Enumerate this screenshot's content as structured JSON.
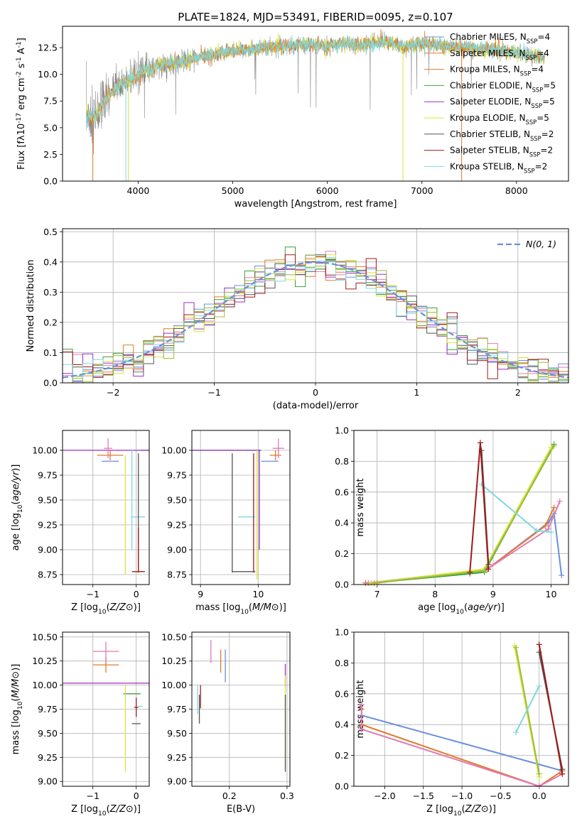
{
  "figure": {
    "title": "PLATE=1824, MJD=53491, FIBERID=0095, z=0.107"
  },
  "colors": {
    "cMILES": "#6a8fdc",
    "sMILES": "#e07b2a",
    "kMILES": "#e07b2a",
    "cELODIE": "#3c9f3c",
    "sELODIE": "#9b2fc0",
    "kELODIE": "#d8e63a",
    "cSTELIB": "#555555",
    "sSTELIB": "#a01a1a",
    "kSTELIB": "#7fd8e0",
    "pink": "#e27ab8",
    "olive": "#9abe3a",
    "gray": "#888888",
    "normal": "#6a8fdc"
  },
  "chart_data": [
    {
      "id": "spectrum",
      "type": "line",
      "xlabel": "wavelength [Angstrom, rest frame]",
      "ylabel": "Flux [f$_\\lambda$10$^{-17}$ erg cm$^{-2}$ s$^{-1}$ A$^{-1}$]",
      "xlim": [
        3200,
        8550
      ],
      "ylim": [
        0,
        14.5
      ],
      "xticks": [
        4000,
        5000,
        6000,
        7000,
        8000
      ],
      "yticks": [
        0.0,
        2.5,
        5.0,
        7.5,
        10.0,
        12.5
      ],
      "legend": [
        {
          "label": "Chabrier MILES, N$_{SSP}$=4",
          "color_key": "cMILES"
        },
        {
          "label": "Salpeter MILES, N$_{SSP}$=4",
          "color_key": "sMILES"
        },
        {
          "label": "Kroupa MILES, N$_{SSP}$=4",
          "color_key": "kMILES"
        },
        {
          "label": "Chabrier ELODIE, N$_{SSP}$=5",
          "color_key": "cELODIE"
        },
        {
          "label": "Salpeter ELODIE, N$_{SSP}$=5",
          "color_key": "sELODIE"
        },
        {
          "label": "Kroupa ELODIE, N$_{SSP}$=5",
          "color_key": "kELODIE"
        },
        {
          "label": "Chabrier STELIB, N$_{SSP}$=2",
          "color_key": "cSTELIB"
        },
        {
          "label": "Salpeter STELIB, N$_{SSP}$=2",
          "color_key": "sSTELIB"
        },
        {
          "label": "Kroupa STELIB, N$_{SSP}$=2",
          "color_key": "kSTELIB"
        }
      ],
      "data_trend": {
        "x": [
          3450,
          3550,
          3650,
          3750,
          3850,
          3950,
          4050,
          4200,
          4400,
          4600,
          4800,
          5000,
          5200,
          5400,
          5600,
          5800,
          6000,
          6200,
          6400,
          6600,
          6800,
          7000,
          7200,
          7400,
          7600,
          7800,
          8000,
          8200,
          8300
        ],
        "y": [
          6.1,
          6.0,
          7.6,
          8.6,
          9.2,
          9.6,
          10.3,
          10.8,
          11.0,
          11.5,
          11.9,
          12.2,
          12.3,
          12.6,
          12.7,
          12.8,
          12.6,
          12.9,
          12.7,
          13.1,
          12.6,
          12.9,
          12.7,
          12.6,
          12.4,
          12.3,
          12.0,
          11.7,
          11.4
        ]
      },
      "dips": [
        {
          "x": 3520,
          "y": 0.0,
          "color_key": "sMILES"
        },
        {
          "x": 3870,
          "y": 0.0,
          "color_key": "kSTELIB"
        },
        {
          "x": 3895,
          "y": 0.0,
          "color_key": "kELODIE"
        },
        {
          "x": 6800,
          "y": 0.0,
          "color_key": "kELODIE"
        },
        {
          "x": 7420,
          "y": 0.0,
          "color_key": "sMILES"
        }
      ]
    },
    {
      "id": "residuals",
      "type": "line",
      "xlabel": "(data-model)/error",
      "ylabel": "Normed distribution",
      "xlim": [
        -2.5,
        2.5
      ],
      "ylim": [
        0,
        0.51
      ],
      "xticks": [
        -2,
        -1,
        0,
        1,
        2
      ],
      "yticks": [
        0.0,
        0.1,
        0.2,
        0.3,
        0.4,
        0.5
      ],
      "legend": [
        {
          "label": "$\\mathcal{N}(0,1)$",
          "color_key": "normal"
        }
      ],
      "bin_width": 0.1,
      "nbins": 50
    },
    {
      "id": "age_vs_Z",
      "type": "scatter",
      "xlabel": "Z [log$_{10}$($Z/Z_\\odot$)]",
      "ylabel": "age  [log$_{10}$($age/yr$)]",
      "xlim": [
        -1.7,
        0.3
      ],
      "ylim": [
        8.65,
        10.2
      ],
      "xticks": [
        -1,
        0
      ],
      "yticks": [
        8.75,
        9.0,
        9.25,
        9.5,
        9.75,
        10.0
      ],
      "points": [
        {
          "x": 0.2,
          "xe": 0.1,
          "y": 10.0,
          "ye": 0.0,
          "color_key": "cELODIE"
        },
        {
          "x": -0.7,
          "xe": 1.0,
          "y": 10.0,
          "ye": 0.0,
          "color_key": "sELODIE"
        },
        {
          "x": -0.6,
          "xe": 0.3,
          "y": 9.95,
          "ye": 0.05,
          "color_key": "sMILES"
        },
        {
          "x": -0.6,
          "xe": 0.2,
          "y": 9.89,
          "ye": 0.0,
          "color_key": "cMILES"
        },
        {
          "x": -0.65,
          "xe": 0.1,
          "y": 10.02,
          "ye": 0.1,
          "color_key": "pink"
        },
        {
          "x": -0.25,
          "xe": 0.0,
          "y": 9.35,
          "ye": 0.6,
          "color_key": "kELODIE"
        },
        {
          "x": -0.1,
          "xe": 0.0,
          "y": 9.5,
          "ye": 0.5,
          "color_key": "kSTELIB"
        },
        {
          "x": 0.05,
          "xe": 0.15,
          "y": 9.33,
          "ye": 0.0,
          "color_key": "kSTELIB"
        },
        {
          "x": 0.05,
          "xe": 0.0,
          "y": 9.37,
          "ye": 0.6,
          "color_key": "cSTELIB"
        },
        {
          "x": 0.05,
          "xe": 0.15,
          "y": 8.78,
          "ye": 0.0,
          "color_key": "sSTELIB"
        },
        {
          "x": 0.05,
          "xe": 0.0,
          "y": 9.0,
          "ye": 0.22,
          "color_key": "sSTELIB"
        }
      ]
    },
    {
      "id": "age_vs_mass",
      "type": "scatter",
      "xlabel": "mass [log$_{10}$($M/M_\\odot$)]",
      "ylabel": "",
      "xlim": [
        8.85,
        10.55
      ],
      "ylim": [
        8.65,
        10.2
      ],
      "xticks": [
        9,
        10
      ],
      "yticks": [
        8.75,
        9.0,
        9.25,
        9.5,
        9.75,
        10.0
      ],
      "points": [
        {
          "x": 9.45,
          "xe": 0.6,
          "y": 10.0,
          "ye": 0.0,
          "color_key": "cELODIE"
        },
        {
          "x": 9.45,
          "xe": 0.6,
          "y": 10.0,
          "ye": 0.0,
          "color_key": "sELODIE"
        },
        {
          "x": 10.3,
          "xe": 0.1,
          "y": 9.95,
          "ye": 0.05,
          "color_key": "sMILES"
        },
        {
          "x": 10.2,
          "xe": 0.15,
          "y": 9.89,
          "ye": 0.0,
          "color_key": "cMILES"
        },
        {
          "x": 10.35,
          "xe": 0.1,
          "y": 10.02,
          "ye": 0.1,
          "color_key": "pink"
        },
        {
          "x": 9.98,
          "xe": 0.0,
          "y": 9.35,
          "ye": 0.65,
          "color_key": "kELODIE"
        },
        {
          "x": 9.8,
          "xe": 0.15,
          "y": 9.33,
          "ye": 0.0,
          "color_key": "kSTELIB"
        },
        {
          "x": 9.75,
          "xe": 0.2,
          "y": 8.78,
          "ye": 0.0,
          "color_key": "cSTELIB"
        },
        {
          "x": 9.55,
          "xe": 0.0,
          "y": 9.37,
          "ye": 0.6,
          "color_key": "cSTELIB"
        },
        {
          "x": 9.92,
          "xe": 0.0,
          "y": 9.37,
          "ye": 0.6,
          "color_key": "sSTELIB"
        },
        {
          "x": 10.02,
          "xe": 0.0,
          "y": 9.5,
          "ye": 0.5,
          "color_key": "sELODIE"
        }
      ]
    },
    {
      "id": "mw_vs_age",
      "type": "line",
      "xlabel": "age  [log$_{10}$($age/yr$)]",
      "ylabel": "mass weight",
      "xlim": [
        6.6,
        10.3
      ],
      "ylim": [
        0,
        1.0
      ],
      "xticks": [
        7,
        8,
        9,
        10
      ],
      "yticks": [
        0.0,
        0.2,
        0.4,
        0.6,
        0.8,
        1.0
      ],
      "series": [
        {
          "color_key": "cMILES",
          "x": [
            6.8,
            7.0,
            8.9,
            9.95,
            10.05,
            10.18
          ],
          "y": [
            0.01,
            0.01,
            0.1,
            0.4,
            0.46,
            0.06
          ]
        },
        {
          "color_key": "sMILES",
          "x": [
            6.8,
            7.0,
            8.9,
            9.9,
            10.05
          ],
          "y": [
            0.01,
            0.01,
            0.1,
            0.38,
            0.5
          ]
        },
        {
          "color_key": "pink",
          "x": [
            6.85,
            8.9,
            9.95,
            10.15
          ],
          "y": [
            0.01,
            0.1,
            0.36,
            0.54
          ]
        },
        {
          "color_key": "cELODIE",
          "x": [
            6.9,
            8.6,
            8.85,
            10.05
          ],
          "y": [
            0.01,
            0.07,
            0.08,
            0.91
          ]
        },
        {
          "color_key": "kELODIE",
          "x": [
            6.9,
            8.85,
            10.0
          ],
          "y": [
            0.01,
            0.1,
            0.89
          ]
        },
        {
          "color_key": "olive",
          "x": [
            6.95,
            8.85,
            10.05
          ],
          "y": [
            0.01,
            0.09,
            0.9
          ]
        },
        {
          "color_key": "kSTELIB",
          "x": [
            8.8,
            9.75,
            10.0
          ],
          "y": [
            0.65,
            0.35,
            0.34
          ]
        },
        {
          "color_key": "cSTELIB",
          "x": [
            8.8,
            8.92
          ],
          "y": [
            0.87,
            0.13
          ]
        },
        {
          "color_key": "sSTELIB",
          "x": [
            8.6,
            8.78,
            8.92
          ],
          "y": [
            0.08,
            0.92,
            0.1
          ]
        }
      ]
    },
    {
      "id": "mass_vs_Z",
      "type": "scatter",
      "xlabel": "Z [log$_{10}$($Z/Z_\\odot$)]",
      "ylabel": "mass [log$_{10}$($M/M_\\odot$)]",
      "xlim": [
        -1.7,
        0.3
      ],
      "ylim": [
        8.95,
        10.55
      ],
      "xticks": [
        -1,
        0
      ],
      "yticks": [
        9.0,
        9.25,
        9.5,
        9.75,
        10.0,
        10.25,
        10.5
      ],
      "points": [
        {
          "x": -0.7,
          "xe": 1.0,
          "y": 10.02,
          "ye": 0.0,
          "color_key": "sELODIE"
        },
        {
          "x": -0.7,
          "xe": 0.3,
          "y": 10.21,
          "ye": 0.08,
          "color_key": "sMILES"
        },
        {
          "x": -0.7,
          "xe": 0.3,
          "y": 10.35,
          "ye": 0.1,
          "color_key": "pink"
        },
        {
          "x": -0.1,
          "xe": 0.2,
          "y": 9.91,
          "ye": 0.0,
          "color_key": "cELODIE"
        },
        {
          "x": -0.25,
          "xe": 0.0,
          "y": 9.55,
          "ye": 0.45,
          "color_key": "kELODIE"
        },
        {
          "x": 0.0,
          "xe": 0.1,
          "y": 9.6,
          "ye": 0.0,
          "color_key": "cSTELIB"
        },
        {
          "x": 0.0,
          "xe": 0.05,
          "y": 9.77,
          "ye": 0.1,
          "color_key": "sSTELIB"
        },
        {
          "x": 0.1,
          "xe": 0.05,
          "y": 9.78,
          "ye": 0.0,
          "color_key": "kSTELIB"
        }
      ]
    },
    {
      "id": "mass_vs_ebv",
      "type": "scatter",
      "xlabel": "E(B-V)",
      "ylabel": "",
      "xlim": [
        0.135,
        0.305
      ],
      "ylim": [
        8.95,
        10.55
      ],
      "xticks": [
        0.2,
        0.3
      ],
      "yticks": [
        9.0,
        9.25,
        9.5,
        9.75,
        10.0,
        10.25,
        10.5
      ],
      "points": [
        {
          "x": 0.145,
          "y": 9.85,
          "ye": 0.15,
          "color_key": "kSTELIB"
        },
        {
          "x": 0.148,
          "y": 9.75,
          "ye": 0.15,
          "color_key": "cSTELIB"
        },
        {
          "x": 0.15,
          "y": 9.88,
          "ye": 0.12,
          "color_key": "sSTELIB"
        },
        {
          "x": 0.168,
          "y": 10.35,
          "ye": 0.12,
          "color_key": "pink"
        },
        {
          "x": 0.185,
          "y": 10.25,
          "ye": 0.12,
          "color_key": "sMILES"
        },
        {
          "x": 0.193,
          "y": 10.2,
          "ye": 0.17,
          "color_key": "cMILES"
        },
        {
          "x": 0.297,
          "y": 10.1,
          "ye": 0.12,
          "color_key": "sELODIE"
        },
        {
          "x": 0.297,
          "y": 9.6,
          "ye": 0.5,
          "color_key": "kELODIE"
        },
        {
          "x": 0.297,
          "y": 9.5,
          "ye": 0.4,
          "color_key": "cSTELIB"
        }
      ]
    },
    {
      "id": "mw_vs_Z",
      "type": "line",
      "xlabel": "Z [log$_{10}$($Z/Z_\\odot$)]",
      "ylabel": "mass weight",
      "xlim": [
        -2.4,
        0.38
      ],
      "ylim": [
        0,
        1.0
      ],
      "xticks": [
        -2.0,
        -1.5,
        -1.0,
        -0.5,
        0.0
      ],
      "yticks": [
        0.0,
        0.2,
        0.4,
        0.6,
        0.8,
        1.0
      ],
      "series": [
        {
          "color_key": "cMILES",
          "x": [
            -2.3,
            0.3
          ],
          "y": [
            0.46,
            0.1
          ]
        },
        {
          "color_key": "sMILES",
          "x": [
            -2.3,
            -2.3,
            0.0,
            0.3
          ],
          "y": [
            0.5,
            0.4,
            0.0,
            0.1
          ]
        },
        {
          "color_key": "pink",
          "x": [
            -2.3,
            -2.3,
            0.0,
            0.3
          ],
          "y": [
            0.53,
            0.37,
            0.0,
            0.08
          ]
        },
        {
          "color_key": "kELODIE",
          "x": [
            -0.32,
            0.0
          ],
          "y": [
            0.91,
            0.06
          ]
        },
        {
          "color_key": "olive",
          "x": [
            -0.3,
            0.0
          ],
          "y": [
            0.9,
            0.08
          ]
        },
        {
          "color_key": "kSTELIB",
          "x": [
            -0.3,
            0.0
          ],
          "y": [
            0.35,
            0.65
          ]
        },
        {
          "color_key": "cSTELIB",
          "x": [
            0.0,
            0.3
          ],
          "y": [
            0.87,
            0.11
          ]
        },
        {
          "color_key": "sSTELIB",
          "x": [
            0.0,
            0.3
          ],
          "y": [
            0.92,
            0.08
          ]
        }
      ]
    }
  ]
}
